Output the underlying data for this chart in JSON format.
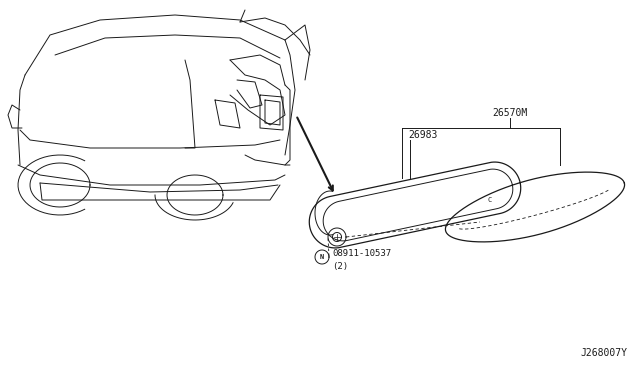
{
  "background_color": "#ffffff",
  "line_color": "#1a1a1a",
  "diagram_id": "J268007Y",
  "figsize": [
    6.4,
    3.72
  ],
  "dpi": 100,
  "label_26570M": "26570M",
  "label_26983": "26983",
  "label_bolt": "08911-10537",
  "label_bolt2": "(2)"
}
